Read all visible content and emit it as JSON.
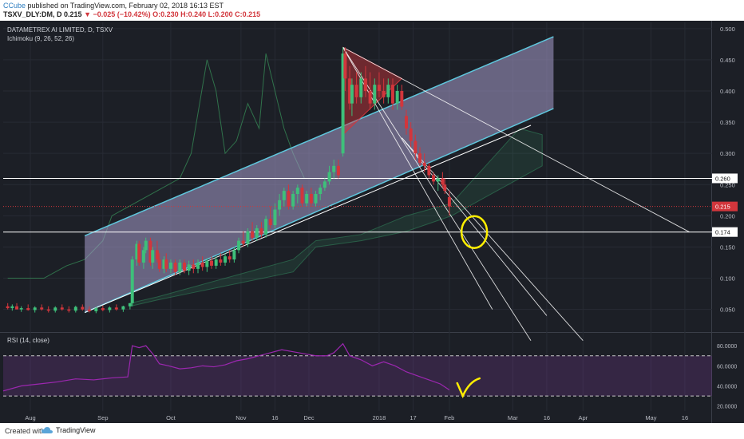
{
  "header": {
    "author": "CCube",
    "published": "published on TradingView.com, February 02, 2018 16:13 EST",
    "symbol": "TSXV_DLY:DM, D",
    "price": "0.215",
    "change": "−0.025 (−10.42%)",
    "ohlc": "O:0.230 H:0.240 L:0.200 C:0.215"
  },
  "footer": {
    "created_with": "Created with",
    "brand": "TradingView"
  },
  "colors": {
    "background": "#1c1f26",
    "up": "#3ec07a",
    "down": "#d2363c",
    "channel": "#5fc7dd",
    "channel_fill": "#a79ccc",
    "rsi_line": "#9c27b0",
    "annotation": "#ffee00",
    "hline": "#ffffff"
  },
  "chart_data": [
    {
      "type": "candlestick",
      "title": "DATAMETREX AI LIMITED, D, TSXV",
      "indicator": "Ichimoku (9, 26, 52, 26)",
      "x_tick_labels": [
        "Aug",
        "Sep",
        "Oct",
        "Nov",
        "16",
        "Dec",
        "2018",
        "17",
        "Feb",
        "Mar",
        "16",
        "Apr",
        "May",
        "16"
      ],
      "x_tick_days": [
        -16,
        16,
        46,
        77,
        92,
        107,
        138,
        153,
        169,
        197,
        212,
        228,
        258,
        273
      ],
      "y_ticks": [
        0.05,
        0.1,
        0.15,
        0.2,
        0.25,
        0.3,
        0.35,
        0.4,
        0.45,
        0.5
      ],
      "y_tick_labels": [
        "0.050",
        "0.100",
        "0.150",
        "0.200",
        "0.250",
        "0.300",
        "0.350",
        "0.400",
        "0.450",
        "0.500"
      ],
      "ylim": [
        0.015,
        0.51
      ],
      "xlim": [
        -28,
        285
      ],
      "price_labels": [
        {
          "value": 0.26,
          "label": "0.260",
          "kind": "hline"
        },
        {
          "value": 0.215,
          "label": "0.215",
          "kind": "last"
        },
        {
          "value": 0.174,
          "label": "0.174",
          "kind": "hline"
        }
      ],
      "candles": [
        {
          "x": -26,
          "o": 0.055,
          "h": 0.06,
          "l": 0.05,
          "c": 0.052
        },
        {
          "x": -24,
          "o": 0.052,
          "h": 0.058,
          "l": 0.048,
          "c": 0.055
        },
        {
          "x": -22,
          "o": 0.055,
          "h": 0.06,
          "l": 0.05,
          "c": 0.05
        },
        {
          "x": -20,
          "o": 0.05,
          "h": 0.055,
          "l": 0.046,
          "c": 0.052
        },
        {
          "x": -17,
          "o": 0.052,
          "h": 0.058,
          "l": 0.048,
          "c": 0.049
        },
        {
          "x": -14,
          "o": 0.049,
          "h": 0.055,
          "l": 0.045,
          "c": 0.053
        },
        {
          "x": -11,
          "o": 0.053,
          "h": 0.058,
          "l": 0.048,
          "c": 0.05
        },
        {
          "x": -8,
          "o": 0.05,
          "h": 0.055,
          "l": 0.045,
          "c": 0.048
        },
        {
          "x": -5,
          "o": 0.048,
          "h": 0.055,
          "l": 0.045,
          "c": 0.053
        },
        {
          "x": -2,
          "o": 0.053,
          "h": 0.058,
          "l": 0.048,
          "c": 0.05
        },
        {
          "x": 1,
          "o": 0.05,
          "h": 0.055,
          "l": 0.045,
          "c": 0.048
        },
        {
          "x": 4,
          "o": 0.048,
          "h": 0.056,
          "l": 0.045,
          "c": 0.054
        },
        {
          "x": 7,
          "o": 0.054,
          "h": 0.058,
          "l": 0.048,
          "c": 0.05
        },
        {
          "x": 10,
          "o": 0.05,
          "h": 0.055,
          "l": 0.045,
          "c": 0.047
        },
        {
          "x": 13,
          "o": 0.047,
          "h": 0.054,
          "l": 0.044,
          "c": 0.052
        },
        {
          "x": 16,
          "o": 0.052,
          "h": 0.056,
          "l": 0.047,
          "c": 0.049
        },
        {
          "x": 19,
          "o": 0.049,
          "h": 0.055,
          "l": 0.045,
          "c": 0.053
        },
        {
          "x": 22,
          "o": 0.053,
          "h": 0.058,
          "l": 0.048,
          "c": 0.05
        },
        {
          "x": 25,
          "o": 0.05,
          "h": 0.056,
          "l": 0.046,
          "c": 0.055
        },
        {
          "x": 28,
          "o": 0.055,
          "h": 0.06,
          "l": 0.05,
          "c": 0.06
        },
        {
          "x": 29,
          "o": 0.06,
          "h": 0.135,
          "l": 0.055,
          "c": 0.13
        },
        {
          "x": 31,
          "o": 0.13,
          "h": 0.16,
          "l": 0.12,
          "c": 0.155
        },
        {
          "x": 32,
          "o": 0.155,
          "h": 0.16,
          "l": 0.12,
          "c": 0.125
        },
        {
          "x": 34,
          "o": 0.125,
          "h": 0.15,
          "l": 0.115,
          "c": 0.145
        },
        {
          "x": 35,
          "o": 0.145,
          "h": 0.165,
          "l": 0.14,
          "c": 0.16
        },
        {
          "x": 37,
          "o": 0.16,
          "h": 0.165,
          "l": 0.12,
          "c": 0.125
        },
        {
          "x": 38,
          "o": 0.125,
          "h": 0.15,
          "l": 0.115,
          "c": 0.145
        },
        {
          "x": 40,
          "o": 0.145,
          "h": 0.16,
          "l": 0.125,
          "c": 0.13
        },
        {
          "x": 41,
          "o": 0.13,
          "h": 0.14,
          "l": 0.11,
          "c": 0.115
        },
        {
          "x": 43,
          "o": 0.115,
          "h": 0.135,
          "l": 0.108,
          "c": 0.13
        },
        {
          "x": 44,
          "o": 0.13,
          "h": 0.14,
          "l": 0.11,
          "c": 0.115
        },
        {
          "x": 46,
          "o": 0.115,
          "h": 0.13,
          "l": 0.108,
          "c": 0.125
        },
        {
          "x": 48,
          "o": 0.125,
          "h": 0.13,
          "l": 0.105,
          "c": 0.11
        },
        {
          "x": 50,
          "o": 0.11,
          "h": 0.13,
          "l": 0.105,
          "c": 0.125
        },
        {
          "x": 52,
          "o": 0.125,
          "h": 0.13,
          "l": 0.108,
          "c": 0.112
        },
        {
          "x": 54,
          "o": 0.112,
          "h": 0.128,
          "l": 0.105,
          "c": 0.122
        },
        {
          "x": 56,
          "o": 0.122,
          "h": 0.13,
          "l": 0.108,
          "c": 0.115
        },
        {
          "x": 58,
          "o": 0.115,
          "h": 0.13,
          "l": 0.108,
          "c": 0.125
        },
        {
          "x": 60,
          "o": 0.125,
          "h": 0.135,
          "l": 0.112,
          "c": 0.118
        },
        {
          "x": 62,
          "o": 0.118,
          "h": 0.132,
          "l": 0.11,
          "c": 0.128
        },
        {
          "x": 64,
          "o": 0.128,
          "h": 0.135,
          "l": 0.115,
          "c": 0.12
        },
        {
          "x": 66,
          "o": 0.12,
          "h": 0.135,
          "l": 0.115,
          "c": 0.13
        },
        {
          "x": 68,
          "o": 0.13,
          "h": 0.14,
          "l": 0.12,
          "c": 0.125
        },
        {
          "x": 70,
          "o": 0.125,
          "h": 0.14,
          "l": 0.12,
          "c": 0.135
        },
        {
          "x": 72,
          "o": 0.135,
          "h": 0.145,
          "l": 0.125,
          "c": 0.13
        },
        {
          "x": 74,
          "o": 0.13,
          "h": 0.15,
          "l": 0.125,
          "c": 0.145
        },
        {
          "x": 76,
          "o": 0.145,
          "h": 0.165,
          "l": 0.14,
          "c": 0.16
        },
        {
          "x": 78,
          "o": 0.16,
          "h": 0.175,
          "l": 0.15,
          "c": 0.155
        },
        {
          "x": 80,
          "o": 0.155,
          "h": 0.18,
          "l": 0.15,
          "c": 0.175
        },
        {
          "x": 82,
          "o": 0.175,
          "h": 0.19,
          "l": 0.16,
          "c": 0.165
        },
        {
          "x": 84,
          "o": 0.165,
          "h": 0.185,
          "l": 0.16,
          "c": 0.18
        },
        {
          "x": 86,
          "o": 0.18,
          "h": 0.19,
          "l": 0.165,
          "c": 0.17
        },
        {
          "x": 88,
          "o": 0.17,
          "h": 0.2,
          "l": 0.165,
          "c": 0.195
        },
        {
          "x": 90,
          "o": 0.195,
          "h": 0.215,
          "l": 0.18,
          "c": 0.185
        },
        {
          "x": 92,
          "o": 0.185,
          "h": 0.22,
          "l": 0.18,
          "c": 0.21
        },
        {
          "x": 94,
          "o": 0.21,
          "h": 0.235,
          "l": 0.2,
          "c": 0.225
        },
        {
          "x": 96,
          "o": 0.225,
          "h": 0.245,
          "l": 0.215,
          "c": 0.24
        },
        {
          "x": 98,
          "o": 0.24,
          "h": 0.25,
          "l": 0.21,
          "c": 0.215
        },
        {
          "x": 100,
          "o": 0.215,
          "h": 0.24,
          "l": 0.21,
          "c": 0.235
        },
        {
          "x": 102,
          "o": 0.235,
          "h": 0.25,
          "l": 0.22,
          "c": 0.245
        },
        {
          "x": 104,
          "o": 0.245,
          "h": 0.25,
          "l": 0.215,
          "c": 0.22
        },
        {
          "x": 106,
          "o": 0.22,
          "h": 0.24,
          "l": 0.215,
          "c": 0.235
        },
        {
          "x": 108,
          "o": 0.235,
          "h": 0.245,
          "l": 0.215,
          "c": 0.22
        },
        {
          "x": 110,
          "o": 0.22,
          "h": 0.24,
          "l": 0.215,
          "c": 0.235
        },
        {
          "x": 112,
          "o": 0.235,
          "h": 0.25,
          "l": 0.225,
          "c": 0.245
        },
        {
          "x": 114,
          "o": 0.245,
          "h": 0.26,
          "l": 0.24,
          "c": 0.255
        },
        {
          "x": 116,
          "o": 0.255,
          "h": 0.28,
          "l": 0.25,
          "c": 0.27
        },
        {
          "x": 118,
          "o": 0.27,
          "h": 0.29,
          "l": 0.26,
          "c": 0.28
        },
        {
          "x": 120,
          "o": 0.28,
          "h": 0.29,
          "l": 0.26,
          "c": 0.265
        },
        {
          "x": 122,
          "o": 0.3,
          "h": 0.47,
          "l": 0.295,
          "c": 0.46
        },
        {
          "x": 123,
          "o": 0.46,
          "h": 0.47,
          "l": 0.4,
          "c": 0.42
        },
        {
          "x": 125,
          "o": 0.42,
          "h": 0.44,
          "l": 0.37,
          "c": 0.38
        },
        {
          "x": 126,
          "o": 0.38,
          "h": 0.42,
          "l": 0.36,
          "c": 0.41
        },
        {
          "x": 128,
          "o": 0.41,
          "h": 0.43,
          "l": 0.38,
          "c": 0.39
        },
        {
          "x": 130,
          "o": 0.39,
          "h": 0.43,
          "l": 0.38,
          "c": 0.42
        },
        {
          "x": 132,
          "o": 0.42,
          "h": 0.44,
          "l": 0.39,
          "c": 0.4
        },
        {
          "x": 134,
          "o": 0.4,
          "h": 0.43,
          "l": 0.37,
          "c": 0.38
        },
        {
          "x": 136,
          "o": 0.38,
          "h": 0.42,
          "l": 0.37,
          "c": 0.41
        },
        {
          "x": 138,
          "o": 0.41,
          "h": 0.43,
          "l": 0.39,
          "c": 0.4
        },
        {
          "x": 140,
          "o": 0.4,
          "h": 0.42,
          "l": 0.38,
          "c": 0.39
        },
        {
          "x": 142,
          "o": 0.39,
          "h": 0.42,
          "l": 0.38,
          "c": 0.41
        },
        {
          "x": 144,
          "o": 0.41,
          "h": 0.42,
          "l": 0.37,
          "c": 0.38
        },
        {
          "x": 146,
          "o": 0.38,
          "h": 0.41,
          "l": 0.37,
          "c": 0.4
        },
        {
          "x": 148,
          "o": 0.4,
          "h": 0.41,
          "l": 0.37,
          "c": 0.375
        },
        {
          "x": 150,
          "o": 0.36,
          "h": 0.37,
          "l": 0.33,
          "c": 0.34
        },
        {
          "x": 152,
          "o": 0.34,
          "h": 0.35,
          "l": 0.31,
          "c": 0.32
        },
        {
          "x": 154,
          "o": 0.32,
          "h": 0.33,
          "l": 0.29,
          "c": 0.3
        },
        {
          "x": 156,
          "o": 0.3,
          "h": 0.31,
          "l": 0.28,
          "c": 0.285
        },
        {
          "x": 158,
          "o": 0.285,
          "h": 0.3,
          "l": 0.27,
          "c": 0.28
        },
        {
          "x": 160,
          "o": 0.28,
          "h": 0.285,
          "l": 0.26,
          "c": 0.265
        },
        {
          "x": 162,
          "o": 0.265,
          "h": 0.27,
          "l": 0.25,
          "c": 0.255
        },
        {
          "x": 164,
          "o": 0.255,
          "h": 0.265,
          "l": 0.24,
          "c": 0.26
        },
        {
          "x": 166,
          "o": 0.26,
          "h": 0.27,
          "l": 0.245,
          "c": 0.25
        },
        {
          "x": 167,
          "o": 0.25,
          "h": 0.26,
          "l": 0.235,
          "c": 0.24
        },
        {
          "x": 169,
          "o": 0.23,
          "h": 0.24,
          "l": 0.2,
          "c": 0.215
        }
      ],
      "channel": {
        "upper": [
          [
            8,
            0.168
          ],
          [
            215,
            0.487
          ]
        ],
        "lower": [
          [
            8,
            0.045
          ],
          [
            215,
            0.372
          ]
        ],
        "midline": [
          [
            8,
            0.045
          ],
          [
            205,
            0.345
          ]
        ]
      },
      "horizontal_lines": [
        0.26,
        0.174
      ],
      "trendlines": [
        [
          [
            122,
            0.47
          ],
          [
            275,
            0.174
          ]
        ],
        [
          [
            122,
            0.47
          ],
          [
            205,
            0.0
          ]
        ],
        [
          [
            122,
            0.47
          ],
          [
            188,
            0.05
          ]
        ],
        [
          [
            148,
            0.325
          ],
          [
            228,
            0.0
          ]
        ],
        [
          [
            148,
            0.325
          ],
          [
            212,
            0.04
          ]
        ]
      ],
      "triangle": [
        [
          122,
          0.47
        ],
        [
          122,
          0.33
        ],
        [
          148,
          0.42
        ]
      ],
      "annotation_circle": {
        "x": 180,
        "y": 0.174
      }
    },
    {
      "type": "line",
      "title": "RSI (14, close)",
      "ylim": [
        15,
        92
      ],
      "y_ticks": [
        20,
        40,
        60,
        80
      ],
      "y_tick_labels": [
        "20.0000",
        "40.0000",
        "60.0000",
        "80.0000"
      ],
      "bands": [
        30,
        70
      ],
      "series": [
        {
          "values": [
            [
              -28,
              35
            ],
            [
              -20,
              40
            ],
            [
              -12,
              42
            ],
            [
              -4,
              44
            ],
            [
              4,
              47
            ],
            [
              12,
              46
            ],
            [
              20,
              48
            ],
            [
              27,
              49
            ],
            [
              29,
              80
            ],
            [
              32,
              78
            ],
            [
              35,
              80
            ],
            [
              38,
              72
            ],
            [
              41,
              62
            ],
            [
              45,
              60
            ],
            [
              50,
              57
            ],
            [
              55,
              58
            ],
            [
              60,
              60
            ],
            [
              65,
              59
            ],
            [
              70,
              61
            ],
            [
              75,
              65
            ],
            [
              80,
              67
            ],
            [
              85,
              70
            ],
            [
              90,
              73
            ],
            [
              95,
              76
            ],
            [
              100,
              74
            ],
            [
              105,
              72
            ],
            [
              110,
              70
            ],
            [
              115,
              70
            ],
            [
              118,
              73
            ],
            [
              122,
              82
            ],
            [
              125,
              70
            ],
            [
              130,
              66
            ],
            [
              135,
              60
            ],
            [
              140,
              64
            ],
            [
              145,
              60
            ],
            [
              150,
              54
            ],
            [
              155,
              50
            ],
            [
              160,
              46
            ],
            [
              165,
              42
            ],
            [
              169,
              36
            ]
          ]
        }
      ],
      "annotation_check": {
        "x": 176,
        "y": 38
      }
    }
  ]
}
